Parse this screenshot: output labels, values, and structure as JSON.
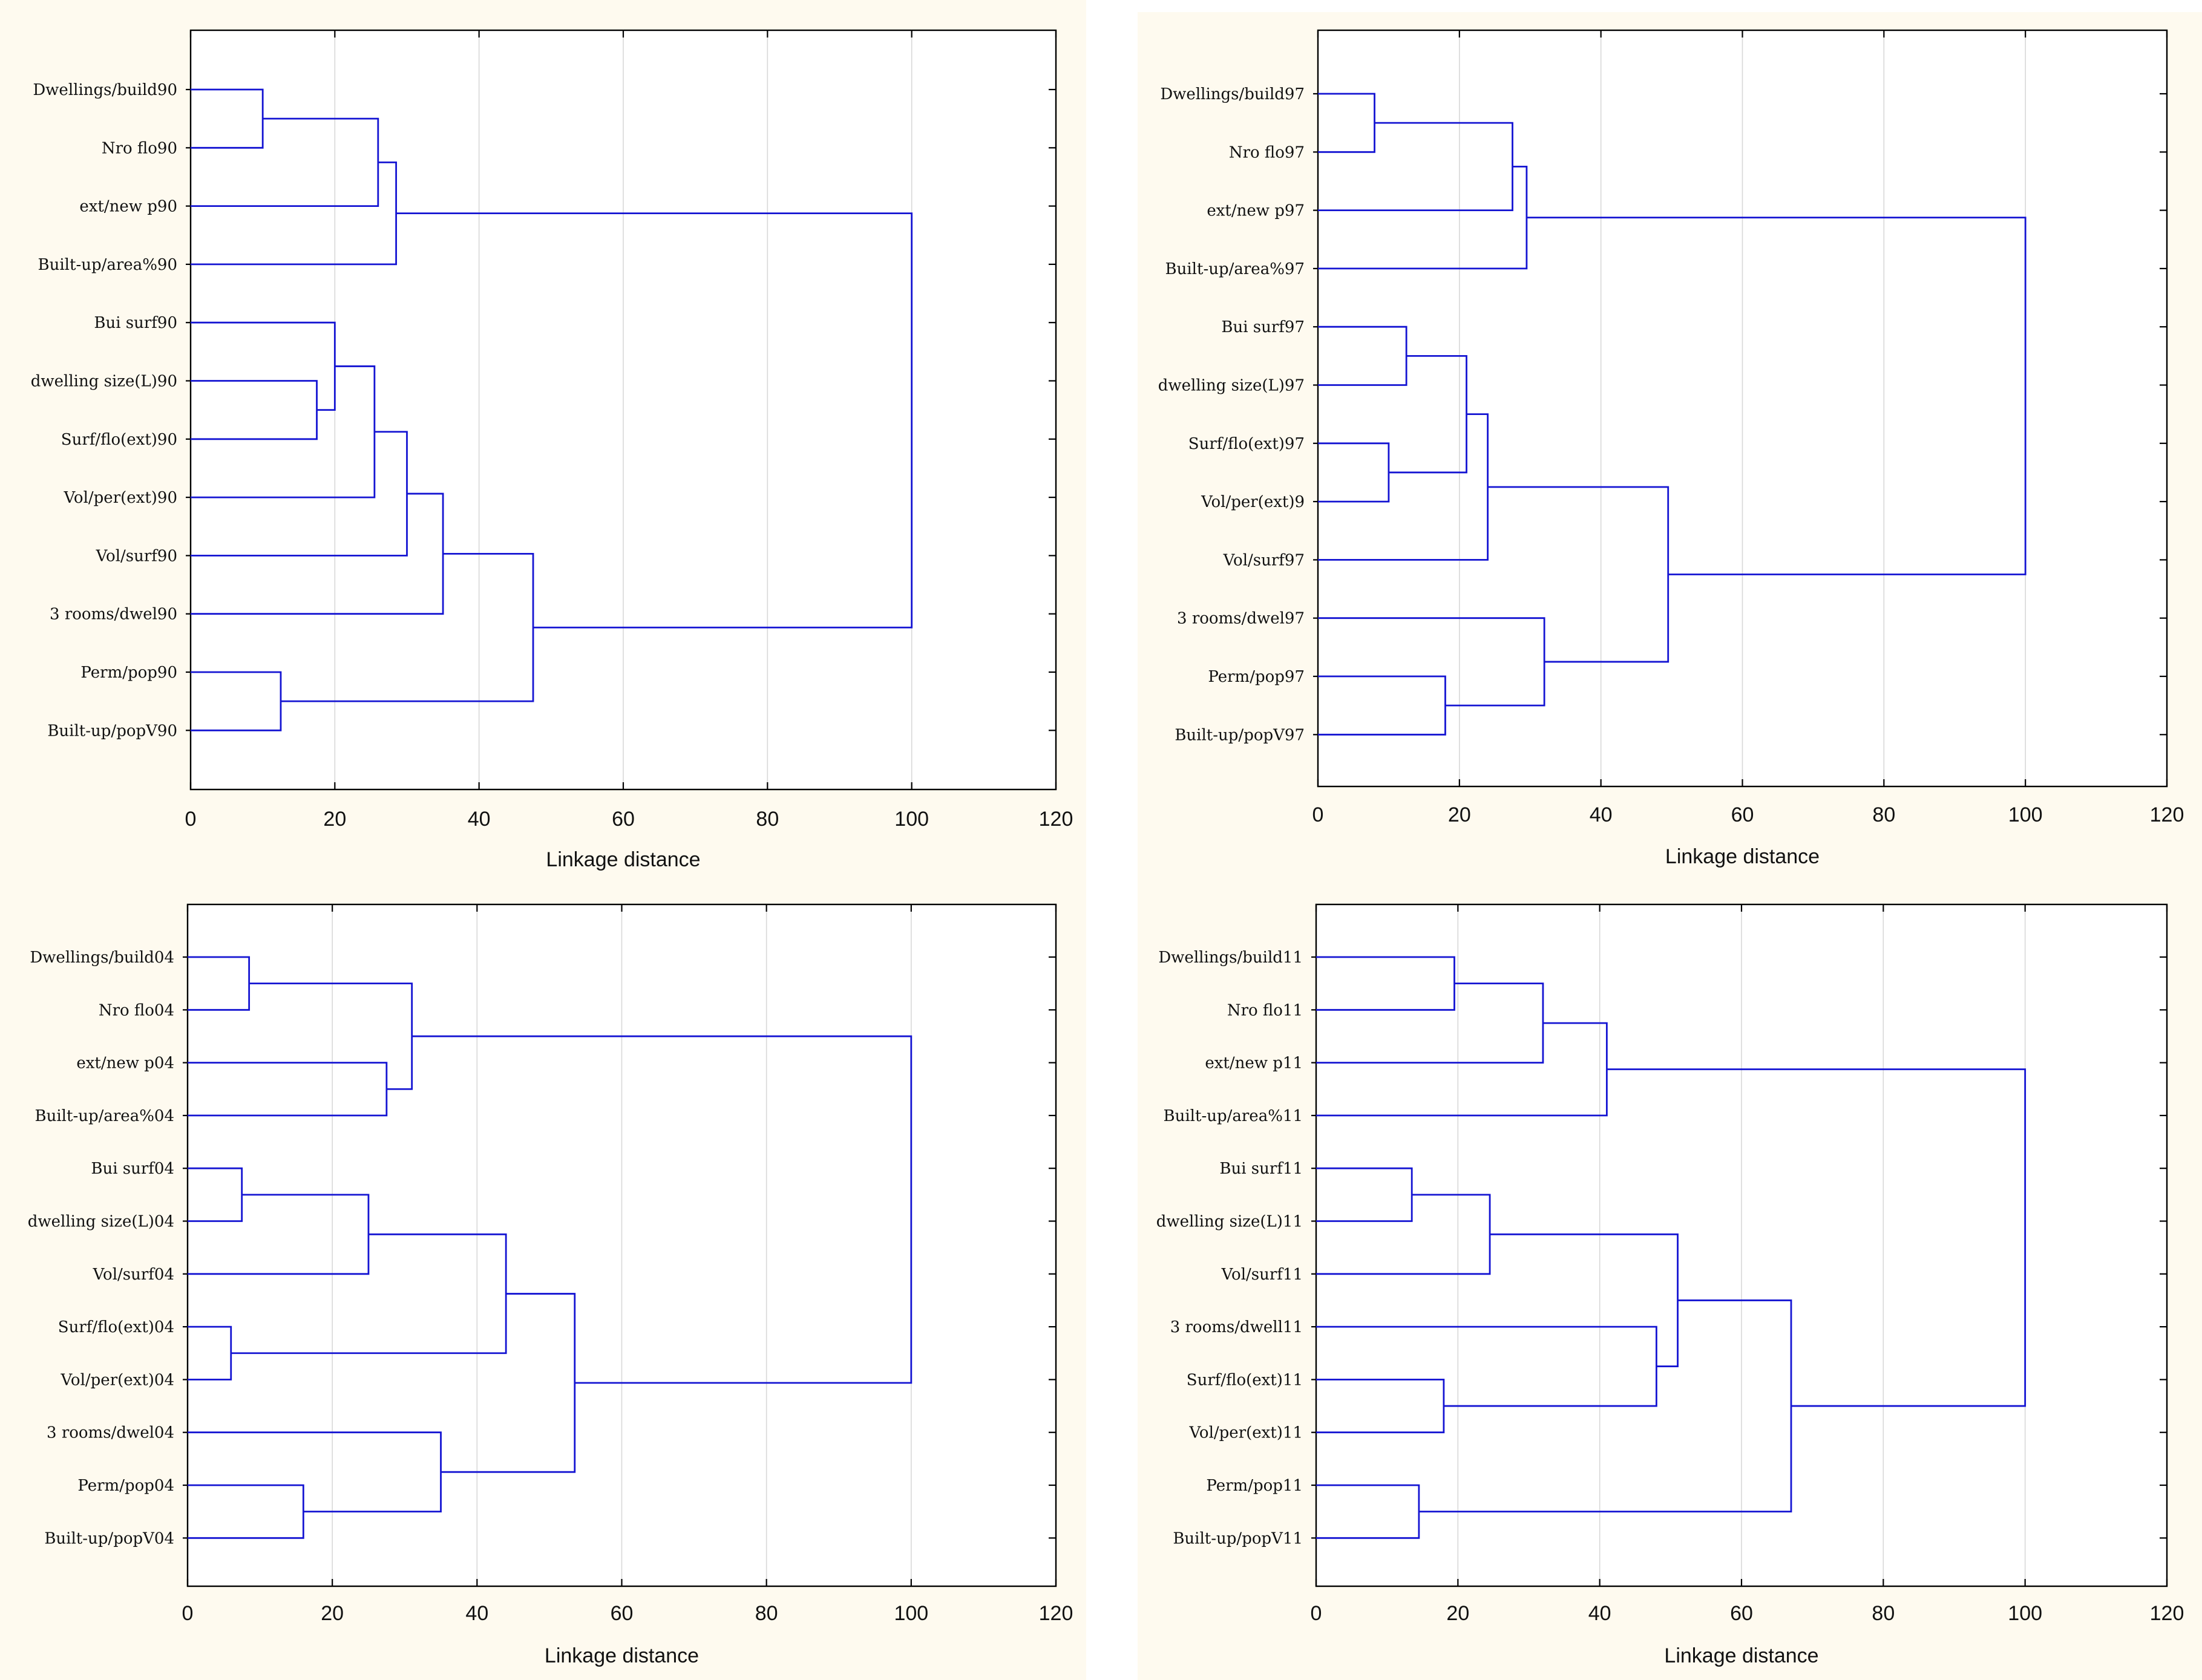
{
  "colors": {
    "panel_background": "#fefaef",
    "dendrogram_line": "#1414d2",
    "grid": "#d8d8d8"
  },
  "chart_data": [
    {
      "type": "dendrogram",
      "xlabel": "Linkage distance",
      "xlim": [
        0,
        120
      ],
      "xticks": [
        0,
        20,
        40,
        60,
        80,
        100,
        120
      ],
      "grid": "vertical",
      "leaves": [
        "Dwellings/build90",
        "Nro flo90",
        "ext/new p90",
        "Built-up/area%90",
        "Bui surf90",
        "dwelling size(L)90",
        "Surf/flo(ext)90",
        "Vol/per(ext)90",
        "Vol/surf90",
        "3 rooms/dwel90",
        "Perm/pop90",
        "Built-up/popV90"
      ],
      "merges": [
        {
          "left": 0,
          "right": 1,
          "distance": 10
        },
        {
          "left": 12,
          "right": 2,
          "distance": 26
        },
        {
          "left": 13,
          "right": 3,
          "distance": 28.5
        },
        {
          "left": 5,
          "right": 6,
          "distance": 17.5
        },
        {
          "left": 4,
          "right": 15,
          "distance": 20
        },
        {
          "left": 16,
          "right": 7,
          "distance": 25.5
        },
        {
          "left": 17,
          "right": 8,
          "distance": 30
        },
        {
          "left": 18,
          "right": 9,
          "distance": 35
        },
        {
          "left": 10,
          "right": 11,
          "distance": 12.5
        },
        {
          "left": 19,
          "right": 20,
          "distance": 47.5
        },
        {
          "left": 14,
          "right": 21,
          "distance": 100
        }
      ]
    },
    {
      "type": "dendrogram",
      "xlabel": "Linkage distance",
      "xlim": [
        0,
        120
      ],
      "xticks": [
        0,
        20,
        40,
        60,
        80,
        100,
        120
      ],
      "grid": "vertical",
      "leaves": [
        "Dwellings/build97",
        "Nro flo97",
        "ext/new p97",
        "Built-up/area%97",
        "Bui surf97",
        "dwelling size(L)97",
        "Surf/flo(ext)97",
        "Vol/per(ext)9",
        "Vol/surf97",
        "3 rooms/dwel97",
        "Perm/pop97",
        "Built-up/popV97"
      ],
      "merges": [
        {
          "left": 0,
          "right": 1,
          "distance": 8
        },
        {
          "left": 12,
          "right": 2,
          "distance": 27.5
        },
        {
          "left": 13,
          "right": 3,
          "distance": 29.5
        },
        {
          "left": 4,
          "right": 5,
          "distance": 12.5
        },
        {
          "left": 6,
          "right": 7,
          "distance": 10
        },
        {
          "left": 15,
          "right": 16,
          "distance": 21
        },
        {
          "left": 17,
          "right": 8,
          "distance": 24
        },
        {
          "left": 10,
          "right": 11,
          "distance": 18
        },
        {
          "left": 9,
          "right": 19,
          "distance": 32
        },
        {
          "left": 18,
          "right": 20,
          "distance": 49.5
        },
        {
          "left": 14,
          "right": 21,
          "distance": 100
        }
      ]
    },
    {
      "type": "dendrogram",
      "xlabel": "Linkage distance",
      "xlim": [
        0,
        120
      ],
      "xticks": [
        0,
        20,
        40,
        60,
        80,
        100,
        120
      ],
      "grid": "vertical",
      "leaves": [
        "Dwellings/build04",
        "Nro flo04",
        "ext/new p04",
        "Built-up/area%04",
        "Bui surf04",
        "dwelling size(L)04",
        "Vol/surf04",
        "Surf/flo(ext)04",
        "Vol/per(ext)04",
        "3 rooms/dwel04",
        "Perm/pop04",
        "Built-up/popV04"
      ],
      "merges": [
        {
          "left": 0,
          "right": 1,
          "distance": 8.5
        },
        {
          "left": 2,
          "right": 3,
          "distance": 27.5
        },
        {
          "left": 12,
          "right": 13,
          "distance": 31
        },
        {
          "left": 4,
          "right": 5,
          "distance": 7.5
        },
        {
          "left": 15,
          "right": 6,
          "distance": 25
        },
        {
          "left": 7,
          "right": 8,
          "distance": 6
        },
        {
          "left": 16,
          "right": 17,
          "distance": 44
        },
        {
          "left": 10,
          "right": 11,
          "distance": 16
        },
        {
          "left": 9,
          "right": 19,
          "distance": 35
        },
        {
          "left": 18,
          "right": 20,
          "distance": 53.5
        },
        {
          "left": 14,
          "right": 21,
          "distance": 100
        }
      ]
    },
    {
      "type": "dendrogram",
      "xlabel": "Linkage distance",
      "xlim": [
        0,
        120
      ],
      "xticks": [
        0,
        20,
        40,
        60,
        80,
        100,
        120
      ],
      "grid": "vertical",
      "leaves": [
        "Dwellings/build11",
        "Nro flo11",
        "ext/new p11",
        "Built-up/area%11",
        "Bui surf11",
        "dwelling size(L)11",
        "Vol/surf11",
        "3 rooms/dwell11",
        "Surf/flo(ext)11",
        "Vol/per(ext)11",
        "Perm/pop11",
        "Built-up/popV11"
      ],
      "merges": [
        {
          "left": 0,
          "right": 1,
          "distance": 19.5
        },
        {
          "left": 12,
          "right": 2,
          "distance": 32
        },
        {
          "left": 13,
          "right": 3,
          "distance": 41
        },
        {
          "left": 4,
          "right": 5,
          "distance": 13.5
        },
        {
          "left": 15,
          "right": 6,
          "distance": 24.5
        },
        {
          "left": 8,
          "right": 9,
          "distance": 18
        },
        {
          "left": 7,
          "right": 17,
          "distance": 48
        },
        {
          "left": 16,
          "right": 18,
          "distance": 51
        },
        {
          "left": 10,
          "right": 11,
          "distance": 14.5
        },
        {
          "left": 19,
          "right": 20,
          "distance": 67
        },
        {
          "left": 14,
          "right": 21,
          "distance": 100
        }
      ]
    }
  ]
}
